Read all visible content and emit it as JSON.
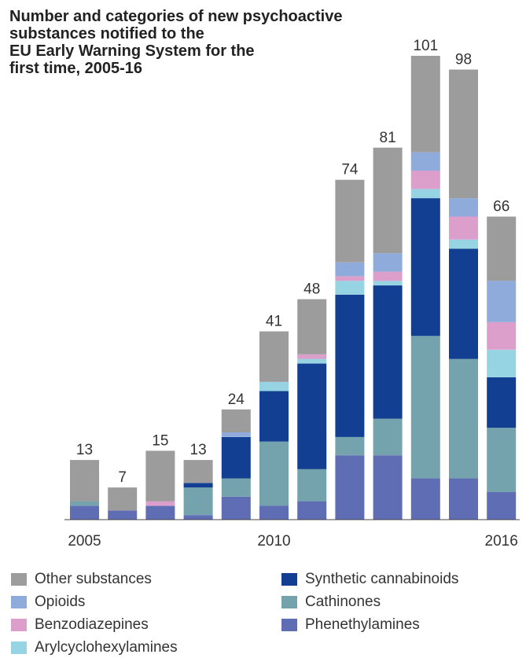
{
  "chart_data": {
    "type": "bar",
    "stacked": true,
    "title": [
      "Number and categories of new psychoactive",
      "substances notified to the",
      "EU Early Warning System for the",
      "first time, 2005-16"
    ],
    "categories": [
      "2005",
      "2006",
      "2007",
      "2008",
      "2009",
      "2010",
      "2011",
      "2012",
      "2013",
      "2014",
      "2015",
      "2016"
    ],
    "tick_labels": [
      "2005",
      "2010",
      "2016"
    ],
    "tick_categories": [
      "2005",
      "2010",
      "2016"
    ],
    "totals": [
      13,
      7,
      15,
      13,
      24,
      41,
      48,
      74,
      81,
      101,
      98,
      66
    ],
    "total_labels": [
      "13",
      "7",
      "15",
      "13",
      "24",
      "41",
      "48",
      "74",
      "81",
      "101",
      "98",
      "66"
    ],
    "ylim": [
      0,
      101
    ],
    "series": [
      {
        "name": "Phenethylamines",
        "color": "#5f6db5",
        "values": [
          3,
          2,
          3,
          1,
          5,
          3,
          4,
          14,
          14,
          9,
          9,
          6
        ]
      },
      {
        "name": "Cathinones",
        "color": "#74a2ad",
        "values": [
          1,
          0,
          0,
          6,
          4,
          14,
          7,
          4,
          8,
          31,
          26,
          14
        ]
      },
      {
        "name": "Synthetic cannabinoids",
        "color": "#123f91",
        "values": [
          0,
          0,
          0,
          1,
          9,
          11,
          23,
          31,
          29,
          30,
          24,
          11
        ]
      },
      {
        "name": "Arylcyclohexylamines",
        "color": "#96d3e3",
        "values": [
          0,
          0,
          0,
          0,
          0,
          2,
          1,
          3,
          1,
          2,
          2,
          6
        ]
      },
      {
        "name": "Benzodiazepines",
        "color": "#dc9fcb",
        "values": [
          0,
          0,
          1,
          0,
          0,
          0,
          1,
          1,
          2,
          4,
          5,
          6
        ]
      },
      {
        "name": "Opioids",
        "color": "#8fabdb",
        "values": [
          0,
          0,
          0,
          0,
          1,
          0,
          0,
          3,
          4,
          4,
          4,
          9
        ]
      },
      {
        "name": "Other substances",
        "color": "#9c9c9c",
        "values": [
          9,
          5,
          11,
          5,
          5,
          11,
          12,
          18,
          23,
          21,
          28,
          14
        ]
      }
    ],
    "legend": [
      {
        "name": "Other substances",
        "color": "#9c9c9c"
      },
      {
        "name": "Synthetic cannabinoids",
        "color": "#123f91"
      },
      {
        "name": "Opioids",
        "color": "#8fabdb"
      },
      {
        "name": "Cathinones",
        "color": "#74a2ad"
      },
      {
        "name": "Benzodiazepines",
        "color": "#dc9fcb"
      },
      {
        "name": "Phenethylamines",
        "color": "#5f6db5"
      },
      {
        "name": "Arylcyclohexylamines",
        "color": "#96d3e3"
      }
    ],
    "legend_placement": "bottom",
    "grid": false
  }
}
